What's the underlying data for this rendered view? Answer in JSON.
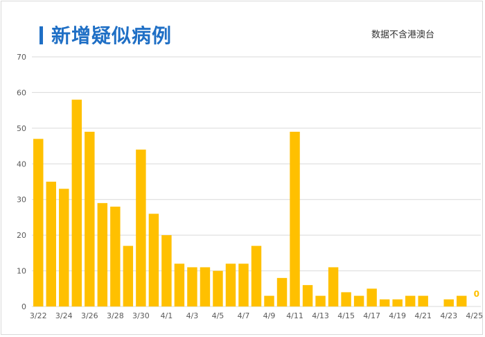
{
  "title": "新增疑似病例",
  "note": "数据不含港澳台",
  "colors": {
    "bar": "#ffc000",
    "title": "#1f6fc5",
    "grid": "#d9d9d9",
    "axis_text": "#595959",
    "last_label": "#ffc000"
  },
  "chart_data": {
    "type": "bar",
    "categories": [
      "3/22",
      "3/23",
      "3/24",
      "3/25",
      "3/26",
      "3/27",
      "3/28",
      "3/29",
      "3/30",
      "3/31",
      "4/1",
      "4/2",
      "4/3",
      "4/4",
      "4/5",
      "4/6",
      "4/7",
      "4/8",
      "4/9",
      "4/10",
      "4/11",
      "4/12",
      "4/13",
      "4/14",
      "4/15",
      "4/16",
      "4/17",
      "4/18",
      "4/19",
      "4/20",
      "4/21",
      "4/22",
      "4/23",
      "4/24",
      "4/25"
    ],
    "values": [
      47,
      35,
      33,
      58,
      49,
      29,
      28,
      17,
      44,
      26,
      20,
      12,
      11,
      11,
      10,
      12,
      12,
      17,
      3,
      8,
      49,
      6,
      3,
      11,
      4,
      3,
      5,
      2,
      2,
      3,
      3,
      0,
      2,
      3,
      0
    ],
    "xtick_labels": [
      "3/22",
      "3/24",
      "3/26",
      "3/28",
      "3/30",
      "4/1",
      "4/3",
      "4/5",
      "4/7",
      "4/9",
      "4/11",
      "4/13",
      "4/15",
      "4/17",
      "4/19",
      "4/21",
      "4/23",
      "4/25"
    ],
    "yticks": [
      "0",
      "10",
      "20",
      "30",
      "40",
      "50",
      "60",
      "70"
    ],
    "ylim": [
      0,
      70
    ],
    "data_labels": [
      {
        "category": "4/25",
        "text": "0"
      }
    ],
    "grid": true
  }
}
